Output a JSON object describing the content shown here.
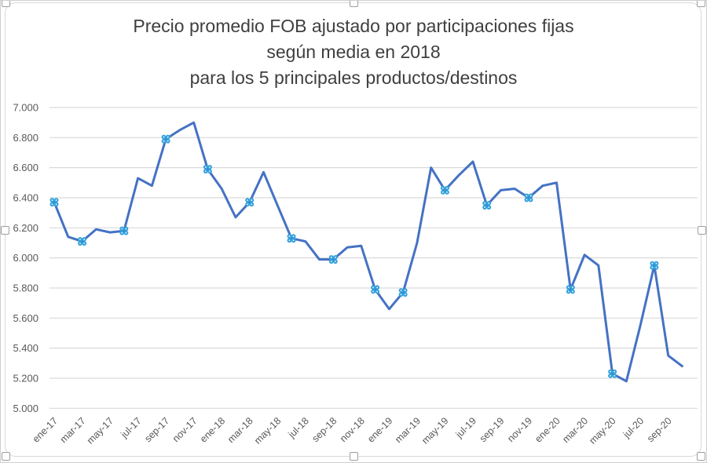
{
  "chart": {
    "title_lines": [
      "Precio promedio FOB ajustado por participaciones fijas",
      "según media en 2018",
      "para los 5 principales productos/destinos"
    ],
    "colors": {
      "line": "#4472c4",
      "marker": "#35a2dc",
      "marker_dot": "#ffffff",
      "grid": "#d9d9d9",
      "axis_text": "#595959",
      "title_text": "#3f3f3f",
      "frame": "#d9d9d9"
    },
    "selection": {
      "state": "chart-selected",
      "handle_positions": [
        "top-left",
        "top-middle",
        "top-right",
        "middle-left",
        "middle-right",
        "bottom-left",
        "bottom-middle",
        "bottom-right"
      ]
    }
  },
  "chart_data": {
    "type": "line",
    "title": "Precio promedio FOB ajustado por participaciones fijas según media en 2018 para los 5 principales productos/destinos",
    "xlabel": "",
    "ylabel": "",
    "ylim": [
      5.0,
      7.0
    ],
    "y_step": 0.2,
    "grid": "horizontal",
    "legend": "none",
    "x": [
      "ene-17",
      "feb-17",
      "mar-17",
      "abr-17",
      "may-17",
      "jun-17",
      "jul-17",
      "ago-17",
      "sep-17",
      "oct-17",
      "nov-17",
      "dic-17",
      "ene-18",
      "feb-18",
      "mar-18",
      "abr-18",
      "may-18",
      "jun-18",
      "jul-18",
      "ago-18",
      "sep-18",
      "oct-18",
      "nov-18",
      "dic-18",
      "ene-19",
      "feb-19",
      "mar-19",
      "abr-19",
      "may-19",
      "jun-19",
      "jul-19",
      "ago-19",
      "sep-19",
      "oct-19",
      "nov-19",
      "dic-19",
      "ene-20",
      "feb-20",
      "mar-20",
      "abr-20",
      "may-20",
      "jun-20",
      "jul-20",
      "ago-20",
      "sep-20",
      "oct-20"
    ],
    "values": [
      6.37,
      6.14,
      6.11,
      6.19,
      6.17,
      6.18,
      6.53,
      6.48,
      6.79,
      6.85,
      6.9,
      6.59,
      6.46,
      6.27,
      6.37,
      6.57,
      6.35,
      6.13,
      6.11,
      5.99,
      5.99,
      6.07,
      6.08,
      5.79,
      5.66,
      5.77,
      6.1,
      6.6,
      6.45,
      6.55,
      6.64,
      6.35,
      6.45,
      6.46,
      6.4,
      6.48,
      6.5,
      5.79,
      6.02,
      5.95,
      5.23,
      5.18,
      5.55,
      5.95,
      5.35,
      5.28
    ],
    "marker_indices": [
      0,
      2,
      5,
      8,
      11,
      14,
      17,
      20,
      23,
      25,
      28,
      31,
      34,
      37,
      40,
      43
    ],
    "marker_months": [
      "ene-17",
      "mar-17",
      "jun-17",
      "sep-17",
      "dic-17",
      "mar-18",
      "jun-18",
      "sep-18",
      "dic-18",
      "feb-19",
      "may-19",
      "ago-19",
      "nov-19",
      "feb-20",
      "may-20",
      "ago-20"
    ],
    "x_tick_labels": [
      "ene-17",
      "mar-17",
      "may-17",
      "jul-17",
      "sep-17",
      "nov-17",
      "ene-18",
      "mar-18",
      "may-18",
      "jul-18",
      "sep-18",
      "nov-18",
      "ene-19",
      "mar-19",
      "may-19",
      "jul-19",
      "sep-19",
      "nov-19",
      "ene-20",
      "mar-20",
      "may-20",
      "jul-20",
      "sep-20"
    ],
    "y_ticks": [
      "7.000",
      "6.800",
      "6.600",
      "6.400",
      "6.200",
      "6.000",
      "5.800",
      "5.600",
      "5.400",
      "5.200",
      "5.000"
    ]
  }
}
